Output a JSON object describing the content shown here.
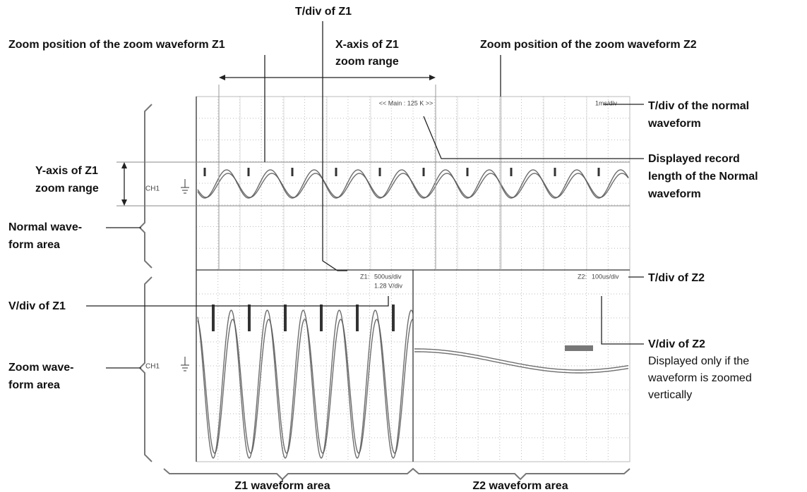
{
  "labels": {
    "tdiv_z1": "T/div of Z1",
    "zoom_pos_z1": "Zoom position of the zoom waveform Z1",
    "x_axis_z1": [
      "X-axis of Z1",
      "zoom range"
    ],
    "zoom_pos_z2": "Zoom position of the zoom waveform Z2",
    "tdiv_normal": [
      "T/div of the normal",
      "waveform"
    ],
    "record_length": [
      "Displayed record",
      "length of the Normal",
      "waveform"
    ],
    "y_axis_z1": [
      "Y-axis of Z1",
      "zoom range"
    ],
    "normal_area": [
      "Normal wave-",
      "form area"
    ],
    "tdiv_z2": "T/div of Z2",
    "vdiv_z1": "V/div of Z1",
    "vdiv_z2": "V/div of Z2",
    "vdiv_z2_note": [
      "Displayed only if the",
      "waveform is zoomed",
      "vertically"
    ],
    "zoom_area": [
      "Zoom wave-",
      "form area"
    ],
    "z1_area": "Z1 waveform area",
    "z2_area": "Z2 waveform area"
  },
  "screen": {
    "main_record": "<< Main : 125 K >>",
    "normal_tdiv": "1ms/div",
    "normal_channel": "CH1",
    "z1_tag": "Z1:",
    "z1_tdiv": "500us/div",
    "z1_vdiv": "1.28 V/div",
    "z2_tag": "Z2:",
    "z2_tdiv": "100us/div",
    "zoom_channel": "CH1"
  }
}
